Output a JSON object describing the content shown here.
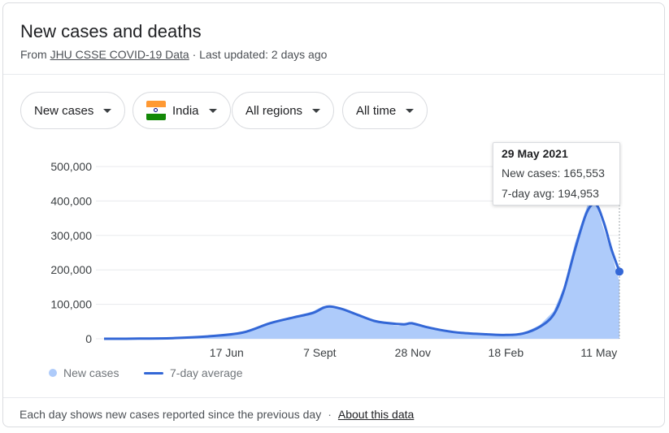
{
  "header": {
    "title": "New cases and deaths",
    "from_prefix": "From",
    "source_link": "JHU CSSE COVID-19 Data",
    "updated": "· Last updated: 2 days ago"
  },
  "filters": [
    {
      "label": "New cases"
    },
    {
      "label": "India",
      "icon": "india-flag-icon"
    },
    {
      "label": "All regions"
    },
    {
      "label": "All time"
    }
  ],
  "tooltip": {
    "date": "29 May 2021",
    "new_cases": "New cases: 165,553",
    "avg": "7-day avg: 194,953"
  },
  "legend": {
    "cases_label": "New cases",
    "avg_label": "7-day average"
  },
  "footer": {
    "note": "Each day shows new cases reported since the previous day",
    "link": "About this data"
  },
  "colors": {
    "area_fill": "#aecbfa",
    "avg_line": "#3367d6",
    "grid": "#e8eaed",
    "axis_text": "#3c4043"
  },
  "chart_data": {
    "type": "area",
    "x_axis": "date",
    "y_ticks": [
      0,
      100000,
      200000,
      300000,
      400000,
      500000
    ],
    "y_tick_labels": [
      "0",
      "100,000",
      "200,000",
      "300,000",
      "400,000",
      "500,000"
    ],
    "ylim": [
      0,
      500000
    ],
    "x_tick_labels": [
      "17 Jun",
      "7 Sept",
      "28 Nov",
      "18 Feb",
      "11 May"
    ],
    "x_range": [
      "2020-03-01",
      "2021-05-29"
    ],
    "series": [
      {
        "name": "New cases",
        "kind": "area",
        "points": [
          [
            "2020-03-01",
            0
          ],
          [
            "2020-04-01",
            500
          ],
          [
            "2020-05-01",
            2500
          ],
          [
            "2020-06-01",
            8000
          ],
          [
            "2020-07-01",
            20000
          ],
          [
            "2020-07-25",
            48000
          ],
          [
            "2020-08-15",
            64000
          ],
          [
            "2020-09-01",
            80000
          ],
          [
            "2020-09-10",
            95000
          ],
          [
            "2020-09-20",
            94000
          ],
          [
            "2020-10-01",
            80000
          ],
          [
            "2020-10-15",
            65000
          ],
          [
            "2020-11-01",
            46000
          ],
          [
            "2020-11-15",
            37000
          ],
          [
            "2020-11-25",
            44000
          ],
          [
            "2020-12-10",
            33000
          ],
          [
            "2020-12-25",
            23000
          ],
          [
            "2021-01-10",
            18000
          ],
          [
            "2021-02-01",
            12000
          ],
          [
            "2021-02-18",
            11000
          ],
          [
            "2021-03-05",
            16000
          ],
          [
            "2021-03-20",
            40000
          ],
          [
            "2021-04-01",
            80000
          ],
          [
            "2021-04-10",
            150000
          ],
          [
            "2021-04-20",
            280000
          ],
          [
            "2021-05-01",
            390000
          ],
          [
            "2021-05-07",
            410000
          ],
          [
            "2021-05-15",
            320000
          ],
          [
            "2021-05-22",
            250000
          ],
          [
            "2021-05-29",
            165553
          ]
        ]
      },
      {
        "name": "7-day average",
        "kind": "line",
        "points": [
          [
            "2020-03-01",
            0
          ],
          [
            "2020-04-01",
            400
          ],
          [
            "2020-05-01",
            2000
          ],
          [
            "2020-06-01",
            7000
          ],
          [
            "2020-07-01",
            18000
          ],
          [
            "2020-07-25",
            45000
          ],
          [
            "2020-08-15",
            62000
          ],
          [
            "2020-09-01",
            75000
          ],
          [
            "2020-09-13",
            93000
          ],
          [
            "2020-09-25",
            88000
          ],
          [
            "2020-10-10",
            70000
          ],
          [
            "2020-10-25",
            52000
          ],
          [
            "2020-11-05",
            46000
          ],
          [
            "2020-11-20",
            42000
          ],
          [
            "2020-11-27",
            45000
          ],
          [
            "2020-12-10",
            34000
          ],
          [
            "2020-12-25",
            24000
          ],
          [
            "2021-01-10",
            17000
          ],
          [
            "2021-02-01",
            13000
          ],
          [
            "2021-02-18",
            11000
          ],
          [
            "2021-03-05",
            15000
          ],
          [
            "2021-03-20",
            35000
          ],
          [
            "2021-04-01",
            70000
          ],
          [
            "2021-04-10",
            140000
          ],
          [
            "2021-04-20",
            260000
          ],
          [
            "2021-04-30",
            365000
          ],
          [
            "2021-05-08",
            391000
          ],
          [
            "2021-05-15",
            340000
          ],
          [
            "2021-05-22",
            260000
          ],
          [
            "2021-05-29",
            194953
          ]
        ]
      }
    ]
  }
}
